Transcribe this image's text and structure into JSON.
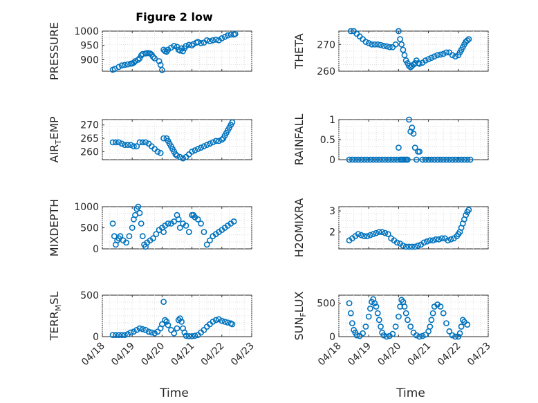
{
  "figure": {
    "title": "Figure 2 low",
    "x_axis_label": "Time",
    "x_tick_labels": [
      "04/18",
      "04/19",
      "04/20",
      "04/21",
      "04/22",
      "04/23"
    ],
    "marker_color": "#0072BD"
  },
  "chart_data": [
    {
      "type": "scatter",
      "title": "Figure 2 low",
      "ylabel": "PRESSURE",
      "xlabel": "",
      "ylim": [
        860,
        1000
      ],
      "yticks": [
        900,
        950,
        1000
      ],
      "xrange": [
        0,
        5
      ],
      "grid": true,
      "x": [
        0.35,
        0.42,
        0.55,
        0.65,
        0.75,
        0.85,
        0.95,
        1.0,
        1.05,
        1.1,
        1.2,
        1.25,
        1.3,
        1.35,
        1.45,
        1.5,
        1.55,
        1.6,
        1.65,
        1.7,
        1.75,
        1.9,
        1.95,
        2.0,
        2.05,
        2.1,
        2.15,
        2.2,
        2.3,
        2.4,
        2.5,
        2.55,
        2.6,
        2.65,
        2.7,
        2.75,
        2.8,
        2.9,
        3.0,
        3.05,
        3.15,
        3.2,
        3.3,
        3.4,
        3.5,
        3.6,
        3.7,
        3.8,
        3.9,
        4.0,
        4.1,
        4.2,
        4.3,
        4.4,
        4.45
      ],
      "y": [
        865,
        868,
        875,
        880,
        882,
        884,
        886,
        887,
        890,
        895,
        900,
        905,
        915,
        920,
        922,
        923,
        923,
        922,
        918,
        910,
        905,
        895,
        882,
        864,
        935,
        930,
        928,
        935,
        942,
        948,
        945,
        935,
        932,
        940,
        930,
        940,
        948,
        952,
        950,
        955,
        960,
        962,
        958,
        960,
        968,
        965,
        968,
        970,
        968,
        975,
        980,
        985,
        988,
        988,
        990
      ]
    },
    {
      "type": "scatter",
      "ylabel": "THETA",
      "xlabel": "",
      "ylim": [
        260,
        275
      ],
      "yticks": [
        260,
        270
      ],
      "xrange": [
        0,
        5
      ],
      "grid": true,
      "x": [
        0.4,
        0.5,
        0.6,
        0.7,
        0.8,
        0.9,
        1.0,
        1.1,
        1.2,
        1.3,
        1.4,
        1.5,
        1.6,
        1.7,
        1.8,
        1.9,
        2.0,
        2.05,
        2.1,
        2.15,
        2.2,
        2.25,
        2.3,
        2.35,
        2.4,
        2.45,
        2.5,
        2.55,
        2.6,
        2.65,
        2.7,
        2.8,
        2.9,
        3.0,
        3.1,
        3.2,
        3.3,
        3.4,
        3.5,
        3.6,
        3.7,
        3.8,
        3.9,
        4.0,
        4.05,
        4.1,
        4.15,
        4.2,
        4.25,
        4.3,
        4.35
      ],
      "y": [
        275,
        275,
        274,
        273,
        272,
        271,
        270.5,
        270,
        270,
        270,
        269.8,
        269.5,
        269.3,
        269,
        269,
        270,
        275,
        272,
        270,
        268,
        266,
        264,
        263,
        262,
        261.5,
        262,
        262.5,
        263,
        264,
        263,
        262.8,
        263.2,
        264,
        264.5,
        265,
        265.5,
        266,
        266.2,
        266.5,
        267,
        267,
        266,
        265.5,
        266,
        267,
        268,
        269,
        270,
        271,
        271.5,
        272
      ]
    },
    {
      "type": "scatter",
      "ylabel": "AIR_TEMP",
      "xlabel": "",
      "ylim": [
        257,
        272
      ],
      "yticks": [
        260,
        265,
        270
      ],
      "xrange": [
        0,
        5
      ],
      "grid": true,
      "x": [
        0.35,
        0.45,
        0.55,
        0.65,
        0.75,
        0.85,
        0.95,
        1.05,
        1.15,
        1.25,
        1.35,
        1.45,
        1.55,
        1.65,
        1.75,
        1.85,
        1.95,
        2.05,
        2.15,
        2.2,
        2.25,
        2.3,
        2.35,
        2.4,
        2.45,
        2.5,
        2.6,
        2.7,
        2.8,
        2.9,
        3.0,
        3.1,
        3.2,
        3.3,
        3.4,
        3.5,
        3.6,
        3.7,
        3.8,
        3.9,
        4.0,
        4.05,
        4.1,
        4.15,
        4.2,
        4.25,
        4.3,
        4.35
      ],
      "y": [
        263.5,
        263.5,
        263.5,
        263,
        262.5,
        262.5,
        262.5,
        262,
        262,
        263.5,
        263.5,
        263.5,
        263,
        262,
        261,
        260,
        259.5,
        265,
        265,
        264,
        263,
        262,
        261,
        260,
        259,
        258.5,
        258,
        257.5,
        258,
        259,
        260,
        260.5,
        261,
        261.5,
        262,
        262.5,
        263,
        263.5,
        264,
        264,
        264.5,
        265,
        266,
        267,
        268,
        269,
        270,
        271
      ]
    },
    {
      "type": "scatter",
      "ylabel": "RAINFALL",
      "xlabel": "",
      "ylim": [
        0,
        1
      ],
      "yticks": [
        0,
        0.5,
        1
      ],
      "xrange": [
        0,
        5
      ],
      "grid": true,
      "x": [
        0.35,
        0.45,
        0.55,
        0.65,
        0.75,
        0.85,
        0.95,
        1.05,
        1.15,
        1.25,
        1.35,
        1.45,
        1.55,
        1.65,
        1.75,
        1.85,
        1.95,
        2.0,
        2.05,
        2.1,
        2.15,
        2.2,
        2.25,
        2.3,
        2.35,
        2.4,
        2.45,
        2.5,
        2.55,
        2.6,
        2.65,
        2.7,
        2.8,
        2.9,
        3.0,
        3.1,
        3.2,
        3.3,
        3.4,
        3.5,
        3.6,
        3.7,
        3.8,
        3.9,
        4.0,
        4.1,
        4.2,
        4.3,
        4.4
      ],
      "y": [
        0,
        0,
        0,
        0,
        0,
        0,
        0,
        0,
        0,
        0,
        0,
        0,
        0,
        0,
        0,
        0,
        0,
        0.3,
        0,
        0,
        0,
        0,
        0,
        0,
        1.0,
        0.7,
        0.8,
        0.65,
        0.3,
        0,
        0.2,
        0.2,
        0,
        0,
        0,
        0,
        0,
        0,
        0,
        0,
        0,
        0,
        0,
        0,
        0,
        0,
        0,
        0,
        0
      ]
    },
    {
      "type": "scatter",
      "ylabel": "MIXDEPTH",
      "xlabel": "",
      "ylim": [
        0,
        1000
      ],
      "yticks": [
        0,
        500,
        1000
      ],
      "xrange": [
        0,
        5
      ],
      "grid": true,
      "x": [
        0.35,
        0.4,
        0.45,
        0.5,
        0.55,
        0.6,
        0.7,
        0.8,
        0.9,
        1.0,
        1.05,
        1.1,
        1.15,
        1.2,
        1.25,
        1.3,
        1.35,
        1.4,
        1.45,
        1.5,
        1.6,
        1.7,
        1.8,
        1.9,
        2.0,
        2.05,
        2.1,
        2.2,
        2.3,
        2.4,
        2.5,
        2.55,
        2.6,
        2.7,
        2.8,
        2.9,
        3.0,
        3.05,
        3.1,
        3.2,
        3.3,
        3.4,
        3.5,
        3.6,
        3.7,
        3.8,
        3.9,
        4.0,
        4.1,
        4.2,
        4.3,
        4.4
      ],
      "y": [
        600,
        300,
        100,
        200,
        250,
        300,
        200,
        150,
        300,
        500,
        700,
        800,
        950,
        1000,
        850,
        600,
        300,
        100,
        50,
        150,
        200,
        250,
        350,
        450,
        500,
        400,
        550,
        600,
        600,
        650,
        800,
        700,
        500,
        600,
        550,
        400,
        800,
        800,
        750,
        700,
        600,
        400,
        100,
        200,
        300,
        350,
        400,
        450,
        500,
        550,
        600,
        650
      ]
    },
    {
      "type": "scatter",
      "ylabel": "H2OMIXRA",
      "xlabel": "",
      "ylim": [
        1.2,
        3.2
      ],
      "yticks": [
        2,
        3
      ],
      "xrange": [
        0,
        5
      ],
      "grid": true,
      "x": [
        0.35,
        0.45,
        0.55,
        0.65,
        0.75,
        0.85,
        0.95,
        1.05,
        1.15,
        1.25,
        1.35,
        1.45,
        1.55,
        1.65,
        1.75,
        1.85,
        1.95,
        2.05,
        2.15,
        2.25,
        2.35,
        2.45,
        2.55,
        2.65,
        2.75,
        2.85,
        2.95,
        3.05,
        3.15,
        3.25,
        3.35,
        3.45,
        3.55,
        3.65,
        3.75,
        3.85,
        3.95,
        4.0,
        4.05,
        4.1,
        4.15,
        4.2,
        4.25,
        4.3,
        4.35
      ],
      "y": [
        1.6,
        1.7,
        1.8,
        1.9,
        1.85,
        1.8,
        1.8,
        1.85,
        1.9,
        1.95,
        2.0,
        2.0,
        1.95,
        1.9,
        1.7,
        1.6,
        1.5,
        1.45,
        1.35,
        1.3,
        1.3,
        1.3,
        1.3,
        1.35,
        1.4,
        1.5,
        1.55,
        1.6,
        1.6,
        1.65,
        1.65,
        1.7,
        1.7,
        1.6,
        1.65,
        1.7,
        1.8,
        1.9,
        2.0,
        2.2,
        2.4,
        2.6,
        2.8,
        2.95,
        3.05
      ]
    },
    {
      "type": "scatter",
      "ylabel": "TERR_MSL",
      "xlabel": "",
      "ylim": [
        0,
        500
      ],
      "yticks": [
        0,
        500
      ],
      "xrange": [
        0,
        5
      ],
      "grid": true,
      "x": [
        0.35,
        0.45,
        0.55,
        0.65,
        0.75,
        0.85,
        0.95,
        1.05,
        1.15,
        1.25,
        1.35,
        1.45,
        1.55,
        1.65,
        1.75,
        1.85,
        1.95,
        2.0,
        2.05,
        2.1,
        2.15,
        2.2,
        2.3,
        2.4,
        2.5,
        2.55,
        2.6,
        2.65,
        2.7,
        2.75,
        2.8,
        2.9,
        3.0,
        3.1,
        3.2,
        3.3,
        3.4,
        3.5,
        3.6,
        3.7,
        3.8,
        3.9,
        4.0,
        4.1,
        4.2,
        4.3,
        4.35
      ],
      "y": [
        20,
        20,
        20,
        20,
        20,
        30,
        50,
        60,
        80,
        100,
        90,
        80,
        60,
        50,
        40,
        60,
        100,
        150,
        420,
        200,
        180,
        140,
        80,
        40,
        100,
        200,
        220,
        180,
        100,
        50,
        10,
        5,
        5,
        10,
        20,
        50,
        80,
        120,
        150,
        180,
        200,
        210,
        190,
        180,
        170,
        160,
        150
      ]
    },
    {
      "type": "scatter",
      "ylabel": "SUN_FLUX",
      "xlabel": "",
      "ylim": [
        0,
        620
      ],
      "yticks": [
        0,
        500
      ],
      "xrange": [
        0,
        5
      ],
      "grid": true,
      "x": [
        0.35,
        0.4,
        0.45,
        0.5,
        0.55,
        0.6,
        0.7,
        0.8,
        0.9,
        1.0,
        1.05,
        1.1,
        1.15,
        1.2,
        1.25,
        1.3,
        1.35,
        1.4,
        1.45,
        1.5,
        1.6,
        1.7,
        1.8,
        1.9,
        2.0,
        2.05,
        2.1,
        2.15,
        2.2,
        2.25,
        2.3,
        2.4,
        2.5,
        2.6,
        2.7,
        2.8,
        2.9,
        3.0,
        3.05,
        3.1,
        3.15,
        3.2,
        3.3,
        3.4,
        3.5,
        3.6,
        3.7,
        3.8,
        3.9,
        4.0,
        4.05,
        4.1,
        4.15,
        4.2,
        4.3
      ],
      "y": [
        500,
        350,
        200,
        100,
        60,
        20,
        10,
        50,
        150,
        300,
        420,
        520,
        560,
        500,
        450,
        350,
        250,
        150,
        60,
        20,
        0,
        10,
        40,
        150,
        300,
        450,
        550,
        520,
        450,
        350,
        250,
        150,
        60,
        20,
        0,
        10,
        30,
        80,
        150,
        250,
        350,
        450,
        480,
        450,
        350,
        200,
        80,
        20,
        0,
        0,
        50,
        150,
        250,
        220,
        180
      ]
    }
  ]
}
